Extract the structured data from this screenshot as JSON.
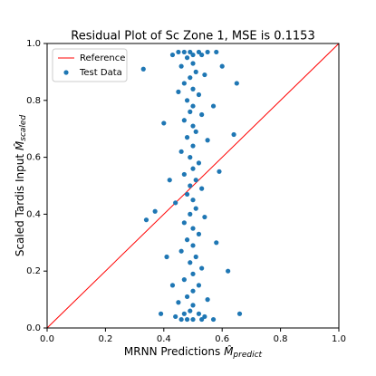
{
  "chart_data": {
    "type": "scatter",
    "title": "Residual Plot of Sc Zone 1, MSE is 0.1153",
    "xlabel": {
      "text": "MRNN Predictions ",
      "symbol": "M̂",
      "sub": "predict"
    },
    "ylabel": {
      "text": "Scaled Tardis Input ",
      "symbol": "M̂",
      "sub": "scaled"
    },
    "xlim": [
      0.0,
      1.0
    ],
    "ylim": [
      0.0,
      1.0
    ],
    "xticks": [
      {
        "value": 0,
        "label": "0.0"
      },
      0.2,
      0.4,
      0.6,
      0.8,
      {
        "value": 1,
        "label": "1.0"
      }
    ],
    "yticks": [
      {
        "value": 0,
        "label": "0.0"
      },
      0.2,
      0.4,
      0.6,
      0.8,
      {
        "value": 1,
        "label": "1.0"
      }
    ],
    "legend": "upper left",
    "series": [
      {
        "name": "Reference",
        "kind": "line",
        "color": "#ff0000",
        "x": [
          0,
          1
        ],
        "y": [
          0,
          1
        ]
      },
      {
        "name": "Test Data",
        "kind": "points",
        "color": "#1f77b4",
        "x": [
          0.49,
          0.47,
          0.52,
          0.45,
          0.55,
          0.5,
          0.48,
          0.53,
          0.43,
          0.58,
          0.5,
          0.46,
          0.51,
          0.49,
          0.54,
          0.47,
          0.5,
          0.52,
          0.48,
          0.45,
          0.5,
          0.49,
          0.53,
          0.47,
          0.5,
          0.51,
          0.48,
          0.55,
          0.5,
          0.46,
          0.49,
          0.52,
          0.5,
          0.47,
          0.51,
          0.49,
          0.53,
          0.48,
          0.5,
          0.44,
          0.51,
          0.49,
          0.54,
          0.47,
          0.5,
          0.52,
          0.48,
          0.5,
          0.46,
          0.51,
          0.49,
          0.53,
          0.5,
          0.47,
          0.52,
          0.5,
          0.48,
          0.55,
          0.45,
          0.5,
          0.49,
          0.52,
          0.47,
          0.54,
          0.44,
          0.5,
          0.48,
          0.53,
          0.46,
          0.57,
          0.33,
          0.34,
          0.37,
          0.65,
          0.64,
          0.4,
          0.62,
          0.66,
          0.39,
          0.6,
          0.42,
          0.58,
          0.41,
          0.59,
          0.43,
          0.57
        ],
        "y": [
          0.97,
          0.97,
          0.97,
          0.97,
          0.97,
          0.96,
          0.95,
          0.96,
          0.96,
          0.97,
          0.93,
          0.92,
          0.9,
          0.88,
          0.89,
          0.86,
          0.84,
          0.82,
          0.8,
          0.83,
          0.78,
          0.76,
          0.75,
          0.73,
          0.71,
          0.69,
          0.67,
          0.66,
          0.64,
          0.62,
          0.6,
          0.58,
          0.56,
          0.54,
          0.52,
          0.5,
          0.49,
          0.47,
          0.45,
          0.44,
          0.42,
          0.4,
          0.39,
          0.37,
          0.35,
          0.33,
          0.31,
          0.29,
          0.27,
          0.25,
          0.23,
          0.21,
          0.19,
          0.17,
          0.15,
          0.13,
          0.11,
          0.1,
          0.09,
          0.08,
          0.06,
          0.05,
          0.05,
          0.04,
          0.04,
          0.03,
          0.03,
          0.03,
          0.03,
          0.03,
          0.91,
          0.38,
          0.41,
          0.86,
          0.68,
          0.72,
          0.2,
          0.05,
          0.05,
          0.92,
          0.52,
          0.3,
          0.25,
          0.55,
          0.15,
          0.78
        ]
      }
    ]
  }
}
